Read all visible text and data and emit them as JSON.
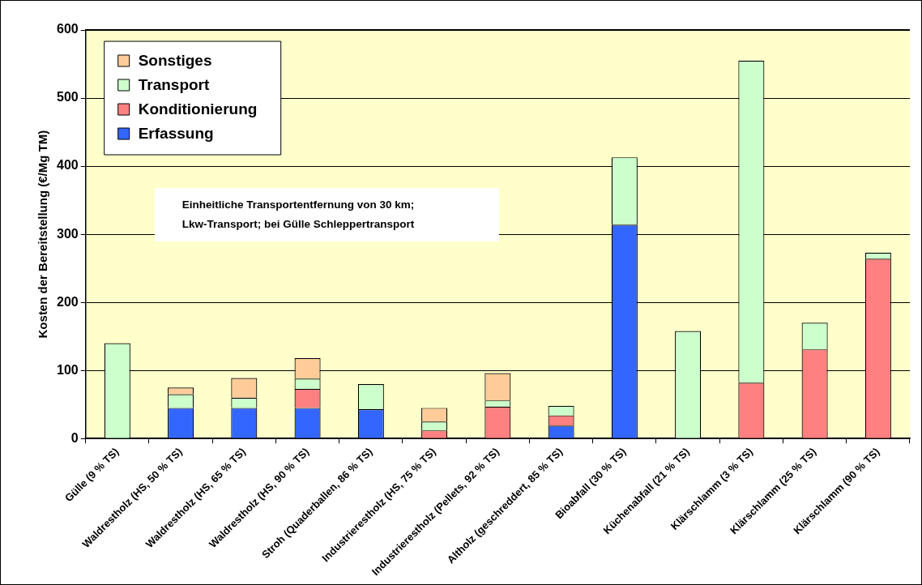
{
  "chart_data": {
    "type": "bar",
    "stacked": true,
    "ylabel": "Kosten der Bereitstellung (€/Mg TM)",
    "categories": [
      "Gülle (9 % TS)",
      "Waldrestholz (HS, 50 % TS)",
      "Waldrestholz (HS, 65 % TS)",
      "Waldrestholz (HS, 90 % TS)",
      "Stroh (Quaderballen, 86 % TS)",
      "Industrierestholz (HS, 75 % TS)",
      "Industrierestholz (Pellets, 92 % TS)",
      "Altholz (geschreddert, 85 % TS)",
      "Bioabfall (30 % TS)",
      "Küchenabfall (21 % TS)",
      "Klärschlamm (3 % TS)",
      "Klärschlamm (25 % TS)",
      "Klärschlamm (90 % TS)"
    ],
    "series": [
      {
        "name": "Erfassung",
        "color": "#3366ff",
        "values": [
          null,
          45,
          45,
          45,
          43,
          null,
          null,
          19,
          314,
          null,
          null,
          null,
          null
        ]
      },
      {
        "name": "Konditionierung",
        "color": "#ff8080",
        "values": [
          null,
          null,
          null,
          28,
          null,
          12,
          47,
          15,
          null,
          null,
          82,
          131,
          264
        ]
      },
      {
        "name": "Transport",
        "color": "#ccffcc",
        "values": [
          140,
          20,
          15,
          15,
          37,
          13,
          9,
          14,
          99,
          158,
          473,
          39,
          9
        ]
      },
      {
        "name": "Sonstiges",
        "color": "#ffcc99",
        "values": [
          null,
          10,
          29,
          30,
          null,
          20,
          40,
          null,
          null,
          null,
          null,
          null,
          null
        ]
      }
    ],
    "ylim": [
      0,
      600
    ],
    "yticks": [
      0,
      100,
      200,
      300,
      400,
      500,
      600
    ],
    "grid": "y",
    "legend": "top left",
    "annotations": [
      "Einheitliche Transportentfernung von 30 km;\nLkw-Transport; bei Gülle Schleppertransport"
    ]
  }
}
